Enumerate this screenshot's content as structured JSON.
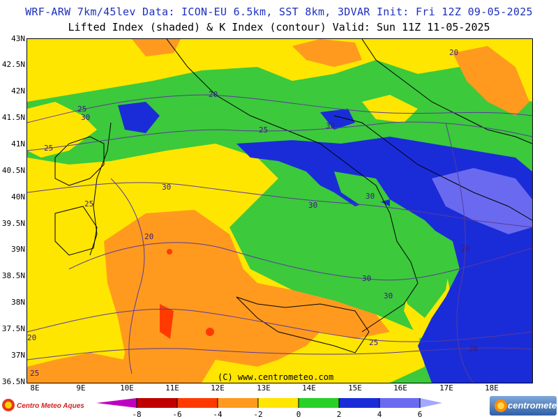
{
  "header": {
    "line1": "WRF-ARW 7km/45lev  Data: ICON-EU 6.5km, SST 8km, 3DVAR  Init: Fri 12Z 09-05-2025",
    "line2": "Lifted Index (shaded) & K Index (contour)  Valid: Sun 11Z 11-05-2025"
  },
  "latitude_labels": [
    "43N",
    "42.5N",
    "42N",
    "41.5N",
    "41N",
    "40.5N",
    "40N",
    "39.5N",
    "39N",
    "38.5N",
    "38N",
    "37.5N",
    "37N",
    "36.5N"
  ],
  "longitude_labels": [
    "8E",
    "9E",
    "10E",
    "11E",
    "12E",
    "13E",
    "14E",
    "15E",
    "16E",
    "17E",
    "18E"
  ],
  "copyright": "(C) www.centrometeo.com",
  "contour_labels": [
    "20",
    "25",
    "30",
    "20",
    "25",
    "30",
    "25",
    "30",
    "20",
    "30",
    "30",
    "20",
    "25",
    "30",
    "30",
    "20",
    "25",
    "20",
    "25",
    "20",
    "25"
  ],
  "colorbar": {
    "ticks": [
      "-8",
      "-6",
      "-4",
      "-2",
      "0",
      "2",
      "4",
      "6"
    ],
    "colors": [
      "#c000c0",
      "#c00000",
      "#ff3a00",
      "#ff9a1f",
      "#ffe600",
      "#28d128",
      "#1a2cd8",
      "#6a6af0",
      "#a0a8ff"
    ]
  },
  "logos": {
    "left": "Centro Meteo Aquesio",
    "right": "centrometeo"
  }
}
